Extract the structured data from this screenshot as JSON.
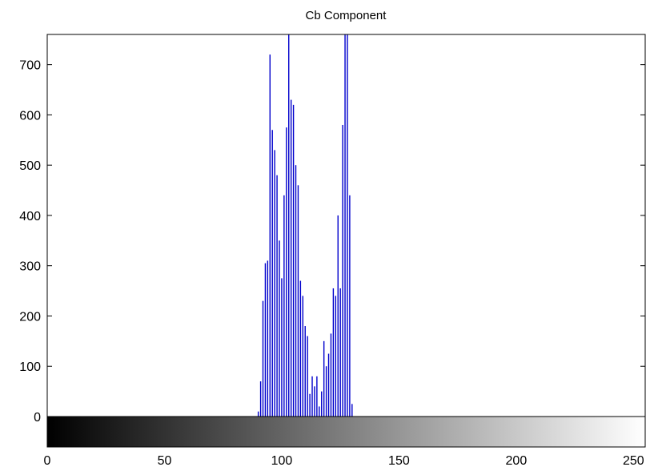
{
  "chart_data": {
    "type": "bar",
    "title": "Cb Component",
    "xlabel": "",
    "ylabel": "",
    "xlim": [
      0,
      255
    ],
    "ylim": [
      0,
      760
    ],
    "x_ticks": [
      0,
      50,
      100,
      150,
      200,
      250
    ],
    "y_ticks": [
      0,
      100,
      200,
      300,
      400,
      500,
      600,
      700
    ],
    "grid": false,
    "bar_color": "#0000cc",
    "colorbar": {
      "type": "grayscale",
      "from": "#000000",
      "to": "#ffffff"
    },
    "x": [
      90,
      91,
      92,
      93,
      94,
      95,
      96,
      97,
      98,
      99,
      100,
      101,
      102,
      103,
      104,
      105,
      106,
      107,
      108,
      109,
      110,
      111,
      112,
      113,
      114,
      115,
      116,
      117,
      118,
      119,
      120,
      121,
      122,
      123,
      124,
      125,
      126,
      127,
      128,
      129,
      130,
      131
    ],
    "values": [
      10,
      70,
      230,
      305,
      310,
      720,
      570,
      530,
      480,
      350,
      275,
      440,
      575,
      760,
      630,
      620,
      500,
      460,
      270,
      240,
      180,
      160,
      45,
      80,
      60,
      80,
      20,
      50,
      150,
      100,
      125,
      165,
      255,
      240,
      400,
      255,
      580,
      760,
      760,
      440,
      25,
      0
    ]
  }
}
